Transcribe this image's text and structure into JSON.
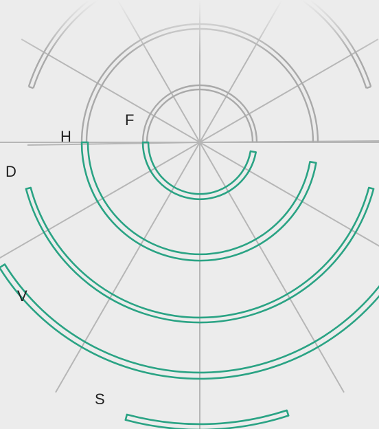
{
  "labels": {
    "f": "F",
    "h": "H",
    "d": "D",
    "v": "V",
    "s": "S"
  },
  "colors": {
    "background": "#ececec",
    "gray_stroke": "#a9a9a9",
    "ray_stroke": "#b6b6b6",
    "green_stroke": "#2aa384"
  }
}
